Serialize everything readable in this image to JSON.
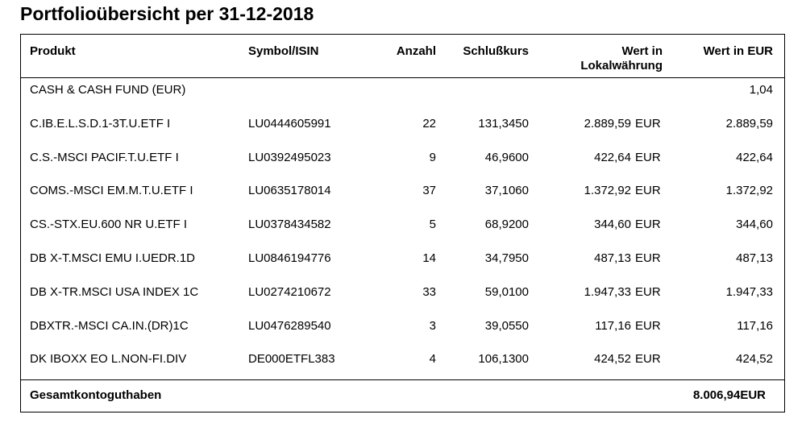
{
  "header": {
    "title": "Portfolioübersicht per 31-12-2018"
  },
  "table": {
    "columns": {
      "product": "Produkt",
      "symbol": "Symbol/ISIN",
      "quantity": "Anzahl",
      "price": "Schlußkurs",
      "local_value": "Wert in Lokalwährung",
      "value_eur": "Wert in EUR"
    },
    "rows": [
      {
        "product": "CASH & CASH FUND (EUR)",
        "value_eur": "1,04"
      },
      {
        "product": "C.IB.E.L.S.D.1-3T.U.ETF I",
        "symbol": "LU0444605991",
        "quantity": "22",
        "price": "131,3450",
        "local_value": "2.889,59",
        "local_currency": "EUR",
        "value_eur": "2.889,59"
      },
      {
        "product": "C.S.-MSCI PACIF.T.U.ETF I",
        "symbol": "LU0392495023",
        "quantity": "9",
        "price": "46,9600",
        "local_value": "422,64",
        "local_currency": "EUR",
        "value_eur": "422,64"
      },
      {
        "product": "COMS.-MSCI EM.M.T.U.ETF I",
        "symbol": "LU0635178014",
        "quantity": "37",
        "price": "37,1060",
        "local_value": "1.372,92",
        "local_currency": "EUR",
        "value_eur": "1.372,92"
      },
      {
        "product": "CS.-STX.EU.600 NR U.ETF I",
        "symbol": "LU0378434582",
        "quantity": "5",
        "price": "68,9200",
        "local_value": "344,60",
        "local_currency": "EUR",
        "value_eur": "344,60"
      },
      {
        "product": "DB X-T.MSCI EMU I.UEDR.1D",
        "symbol": "LU0846194776",
        "quantity": "14",
        "price": "34,7950",
        "local_value": "487,13",
        "local_currency": "EUR",
        "value_eur": "487,13"
      },
      {
        "product": "DB X-TR.MSCI USA INDEX 1C",
        "symbol": "LU0274210672",
        "quantity": "33",
        "price": "59,0100",
        "local_value": "1.947,33",
        "local_currency": "EUR",
        "value_eur": "1.947,33"
      },
      {
        "product": "DBXTR.-MSCI CA.IN.(DR)1C",
        "symbol": "LU0476289540",
        "quantity": "3",
        "price": "39,0550",
        "local_value": "117,16",
        "local_currency": "EUR",
        "value_eur": "117,16"
      },
      {
        "product": "DK IBOXX EO L.NON-FI.DIV",
        "symbol": "DE000ETFL383",
        "quantity": "4",
        "price": "106,1300",
        "local_value": "424,52",
        "local_currency": "EUR",
        "value_eur": "424,52"
      }
    ],
    "footer": {
      "label": "Gesamtkontoguthaben",
      "total": "8.006,94EUR"
    }
  }
}
